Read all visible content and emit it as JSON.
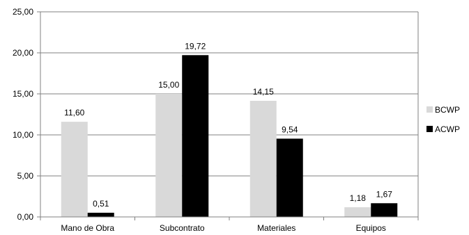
{
  "chart_data": {
    "type": "bar",
    "title": "",
    "xlabel": "",
    "ylabel": "",
    "categories": [
      "Mano de Obra",
      "Subcontrato",
      "Materiales",
      "Equipos"
    ],
    "series": [
      {
        "name": "BCWP",
        "color": "#d9d9d9",
        "values": [
          11.6,
          15.0,
          14.15,
          1.18
        ],
        "labels": [
          "11,60",
          "15,00",
          "14,15",
          "1,18"
        ]
      },
      {
        "name": "ACWP",
        "color": "#000000",
        "values": [
          0.51,
          19.72,
          9.54,
          1.67
        ],
        "labels": [
          "0,51",
          "19,72",
          "9,54",
          "1,67"
        ]
      }
    ],
    "ylim": [
      0,
      25
    ],
    "yticks": [
      0,
      5,
      10,
      15,
      20,
      25
    ],
    "ytick_labels": [
      "0,00",
      "5,00",
      "10,00",
      "15,00",
      "20,00",
      "25,00"
    ],
    "grid": true,
    "legend_position": "right"
  }
}
